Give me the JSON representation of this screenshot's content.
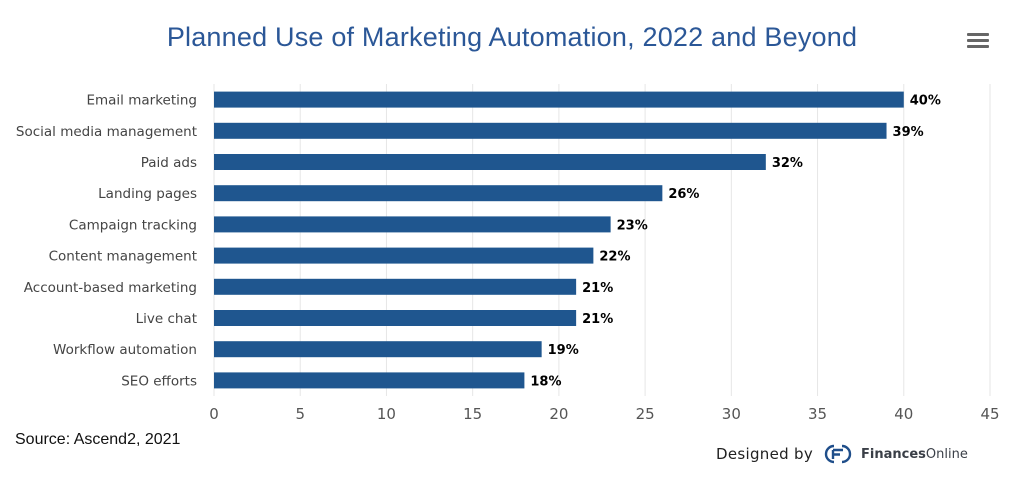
{
  "header": {
    "title": "Planned Use of Marketing Automation, 2022 and Beyond"
  },
  "footer": {
    "source": "Source: Ascend2, 2021",
    "designed_by": "Designed by",
    "brand_bold": "Finances",
    "brand_regular": "Online"
  },
  "colors": {
    "bar": "#1f568f",
    "title": "#2b5797",
    "grid": "#e6e6e6"
  },
  "chart_data": {
    "type": "bar",
    "orientation": "horizontal",
    "title": "Planned Use of Marketing Automation, 2022 and Beyond",
    "categories": [
      "Email marketing",
      "Social media management",
      "Paid ads",
      "Landing pages",
      "Campaign tracking",
      "Content management",
      "Account-based marketing",
      "Live chat",
      "Workflow automation",
      "SEO efforts"
    ],
    "values": [
      40,
      39,
      32,
      26,
      23,
      22,
      21,
      21,
      19,
      18
    ],
    "value_suffix": "%",
    "xlim": [
      0,
      45
    ],
    "xticks": [
      0,
      5,
      10,
      15,
      20,
      25,
      30,
      35,
      40,
      45
    ],
    "xlabel": "",
    "ylabel": "",
    "grid": true,
    "legend": false
  }
}
